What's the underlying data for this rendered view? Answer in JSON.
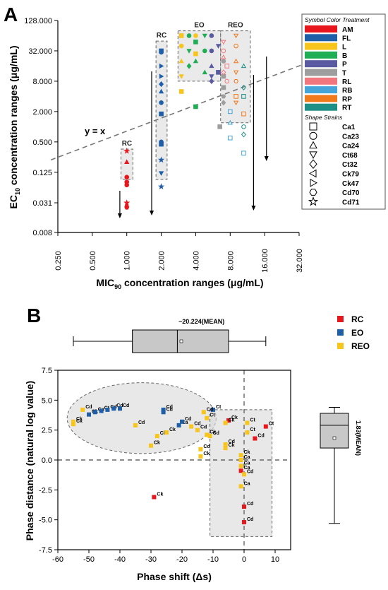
{
  "chart_data": [
    {
      "panel": "A",
      "type": "scatter",
      "xlabel": "MIC",
      "xlabel_sub": "90",
      "xlabel_rest": " concentration ranges (μg/mL)",
      "ylabel": "EC",
      "ylabel_sub": "10",
      "ylabel_rest": " concentration ranges (μg/mL)",
      "x_scale": "log2",
      "y_scale": "log2",
      "xlim": [
        0.25,
        32
      ],
      "ylim": [
        0.008,
        128
      ],
      "x_ticks": [
        "0.250",
        "0.500",
        "1.000",
        "2.000",
        "4.000",
        "8.000",
        "16.000",
        "32.000"
      ],
      "y_ticks": [
        "0.008",
        "0.031",
        "0.125",
        "0.500",
        "2.000",
        "8.000",
        "32.000",
        "128.000"
      ],
      "reference_line": "y = x",
      "group_labels": [
        "RC",
        "RC",
        "EO",
        "REO"
      ],
      "legend": {
        "color_title": "Symbol Color  Treatment",
        "treatments": [
          {
            "name": "AM",
            "color": "#e8161d"
          },
          {
            "name": "FL",
            "color": "#1f5fa8"
          },
          {
            "name": "L",
            "color": "#f7c51c"
          },
          {
            "name": "B",
            "color": "#1fad55"
          },
          {
            "name": "P",
            "color": "#5a5aa0"
          },
          {
            "name": "T",
            "color": "#9e9e9e"
          },
          {
            "name": "RL",
            "color": "#f2767d"
          },
          {
            "name": "RB",
            "color": "#45a4d8"
          },
          {
            "name": "RP",
            "color": "#f07a1c"
          },
          {
            "name": "RT",
            "color": "#1e8f86"
          }
        ],
        "shape_title": "Shape  Strains",
        "strains": [
          {
            "name": "Ca1",
            "shape": "square"
          },
          {
            "name": "Ca23",
            "shape": "circle"
          },
          {
            "name": "Ca24",
            "shape": "triangle-up"
          },
          {
            "name": "Ct68",
            "shape": "triangle-down"
          },
          {
            "name": "Ct32",
            "shape": "diamond"
          },
          {
            "name": "Ck79",
            "shape": "triangle-left"
          },
          {
            "name": "Ck47",
            "shape": "triangle-right"
          },
          {
            "name": "Cd70",
            "shape": "hexagon"
          },
          {
            "name": "Cd71",
            "shape": "star"
          }
        ]
      },
      "series": [
        {
          "name": "AM",
          "points": [
            [
              1,
              0.33,
              "star"
            ],
            [
              1,
              0.2,
              "triangle-up"
            ],
            [
              1,
              0.1,
              "circle"
            ],
            [
              1,
              0.08,
              "circle"
            ],
            [
              1,
              0.07,
              "circle"
            ],
            [
              1,
              0.031,
              "star"
            ],
            [
              1,
              0.028,
              "triangle-up"
            ],
            [
              1,
              0.025,
              "hexagon"
            ]
          ]
        },
        {
          "name": "FL",
          "points": [
            [
              2,
              32,
              "square"
            ],
            [
              2,
              30,
              "circle"
            ],
            [
              2,
              16,
              "triangle-right"
            ],
            [
              2,
              10,
              "triangle-right"
            ],
            [
              2,
              7,
              "diamond"
            ],
            [
              2,
              5,
              "triangle-up"
            ],
            [
              2,
              3,
              "circle"
            ],
            [
              2,
              1.8,
              "square"
            ],
            [
              2,
              0.5,
              "circle"
            ],
            [
              2,
              0.45,
              "square"
            ],
            [
              2,
              0.22,
              "star"
            ],
            [
              2,
              0.12,
              "triangle-down"
            ],
            [
              2,
              0.065,
              "star"
            ]
          ]
        },
        {
          "name": "L",
          "points": [
            [
              3,
              64,
              "square"
            ],
            [
              3,
              40,
              "circle"
            ],
            [
              3,
              20,
              "triangle-up"
            ],
            [
              3,
              10,
              "triangle-down"
            ],
            [
              3,
              5,
              "square"
            ],
            [
              4,
              64,
              "circle"
            ],
            [
              4,
              28,
              "square"
            ]
          ]
        },
        {
          "name": "B",
          "points": [
            [
              3.5,
              64,
              "circle"
            ],
            [
              3.5,
              32,
              "triangle-down"
            ],
            [
              3.5,
              16,
              "diamond"
            ],
            [
              4,
              48,
              "square"
            ],
            [
              4,
              20,
              "triangle-up"
            ],
            [
              4,
              2.5,
              "square"
            ],
            [
              4.8,
              64,
              "triangle-down"
            ],
            [
              4.8,
              32,
              "circle"
            ],
            [
              4.8,
              12,
              "triangle-up"
            ]
          ]
        },
        {
          "name": "P",
          "points": [
            [
              5.5,
              64,
              "circle"
            ],
            [
              5.5,
              32,
              "circle"
            ],
            [
              5.5,
              16,
              "triangle-up"
            ],
            [
              5.5,
              10,
              "triangle-down"
            ],
            [
              5.5,
              8,
              "diamond"
            ],
            [
              6.3,
              12,
              "square"
            ],
            [
              6.3,
              40,
              "triangle-down"
            ]
          ]
        },
        {
          "name": "T",
          "points": [
            [
              7,
              20,
              "circle"
            ],
            [
              7,
              10,
              "square"
            ],
            [
              7,
              6,
              "square"
            ],
            [
              7,
              4,
              "hexagon"
            ],
            [
              7,
              3,
              "diamond"
            ],
            [
              6.5,
              1,
              "square"
            ]
          ]
        },
        {
          "name": "RL",
          "points": [
            [
              7,
              48,
              "triangle-down"
            ],
            [
              7,
              32,
              "circle"
            ],
            [
              7,
              24,
              "triangle-up"
            ],
            [
              7,
              12,
              "diamond"
            ],
            [
              7.5,
              8,
              "circle"
            ],
            [
              7.5,
              16,
              "square"
            ]
          ]
        },
        {
          "name": "RB",
          "points": [
            [
              8,
              2,
              "square"
            ],
            [
              8,
              1.2,
              "triangle-up"
            ],
            [
              8,
              0.6,
              "square"
            ],
            [
              10.5,
              0.3,
              "square"
            ]
          ]
        },
        {
          "name": "RP",
          "points": [
            [
              9,
              64,
              "triangle-down"
            ],
            [
              9,
              40,
              "circle"
            ],
            [
              9,
              20,
              "triangle-up"
            ],
            [
              9,
              12,
              "triangle-down"
            ],
            [
              9,
              8,
              "hexagon"
            ],
            [
              9,
              4,
              "square"
            ],
            [
              9,
              3,
              "triangle-down"
            ],
            [
              10.5,
              1.8,
              "square"
            ]
          ]
        },
        {
          "name": "RT",
          "points": [
            [
              10.5,
              16,
              "triangle-up"
            ],
            [
              10.5,
              6,
              "diamond"
            ],
            [
              10.5,
              4,
              "square"
            ],
            [
              10.5,
              1,
              "circle"
            ],
            [
              10.5,
              0.7,
              "diamond"
            ]
          ]
        }
      ]
    },
    {
      "panel": "B",
      "type": "scatter",
      "xlabel": "Phase shift (Δs)",
      "ylabel": "Phase distance (natural log value)",
      "xlim": [
        -60,
        15
      ],
      "ylim": [
        -7.5,
        7.5
      ],
      "x_ticks": [
        "-60",
        "-50",
        "-40",
        "-30",
        "-20",
        "-10",
        "0",
        "10"
      ],
      "y_ticks": [
        "-7.5",
        "-5.0",
        "-2.5",
        "0.0",
        "2.5",
        "5.0",
        "7.5"
      ],
      "top_boxplot": {
        "min": -55,
        "q1": -36,
        "median": -21.5,
        "mean": -20.224,
        "q3": -5,
        "max": 7,
        "label": "−20.224(MEAN)"
      },
      "right_boxplot": {
        "min": -5.3,
        "q1": 1.0,
        "median": 2.9,
        "mean": 1.83,
        "q3": 3.9,
        "max": 4.4,
        "label": "1.83(MEAN)"
      },
      "legend": [
        {
          "name": "RC",
          "color": "#e8161d"
        },
        {
          "name": "EO",
          "color": "#1f5fa8"
        },
        {
          "name": "REO",
          "color": "#f7c51c"
        }
      ],
      "series": [
        {
          "name": "RC",
          "points": [
            [
              -29,
              -3.1,
              "Ck"
            ],
            [
              -5,
              3.3,
              "Ck"
            ],
            [
              3.5,
              1.8,
              "Cd"
            ],
            [
              7,
              2.8,
              "Ct"
            ],
            [
              0,
              -3.9,
              "Cd"
            ],
            [
              0,
              -5.2,
              "Cd"
            ],
            [
              -1,
              -0.9,
              "Ca"
            ]
          ]
        },
        {
          "name": "EO",
          "points": [
            [
              -50,
              3.8,
              "Ck"
            ],
            [
              -48,
              4.0,
              "Ca"
            ],
            [
              -46,
              4.1,
              "Ct"
            ],
            [
              -44,
              4.2,
              "Cd"
            ],
            [
              -42,
              4.3,
              "Cd"
            ],
            [
              -40,
              4.3,
              "Cd"
            ],
            [
              -26,
              4.0,
              "Cd"
            ],
            [
              -26,
              4.2,
              "Cd"
            ],
            [
              -21,
              2.9,
              "Ca"
            ],
            [
              -20,
              3.2,
              "Cd"
            ],
            [
              -10,
              4.2,
              "Ct"
            ]
          ]
        },
        {
          "name": "REO",
          "points": [
            [
              -55,
              3.0,
              "Ck"
            ],
            [
              -55,
              3.2,
              "Ck"
            ],
            [
              -52,
              4.2,
              "Cd"
            ],
            [
              -35,
              2.9,
              "Cd"
            ],
            [
              -28,
              2.0,
              "Ck"
            ],
            [
              -25,
              2.3,
              "Ck"
            ],
            [
              -30,
              1.2,
              "Ck"
            ],
            [
              -17,
              2.8,
              "Cd"
            ],
            [
              -15,
              2.5,
              "Cd"
            ],
            [
              -12,
              2.1,
              "Ck"
            ],
            [
              -11,
              2.0,
              "Cd"
            ],
            [
              -14,
              0.9,
              "Cd"
            ],
            [
              -14,
              0.3,
              "Ck"
            ],
            [
              -13,
              4.0,
              "Cd"
            ],
            [
              -12,
              3.5,
              "Ct"
            ],
            [
              -6,
              1.3,
              "Cd"
            ],
            [
              -6,
              1.0,
              "Ck"
            ],
            [
              -6,
              3.1,
              "Ck"
            ],
            [
              -1,
              0.4,
              "Ck"
            ],
            [
              -1,
              0.0,
              "Ca"
            ],
            [
              -1,
              -0.5,
              "Ca"
            ],
            [
              -1,
              -2.2,
              "Ca"
            ],
            [
              1,
              3.1,
              "Ct"
            ],
            [
              1,
              2.3,
              "Ct"
            ],
            [
              0,
              -1.2,
              "Cd"
            ]
          ]
        }
      ]
    }
  ]
}
